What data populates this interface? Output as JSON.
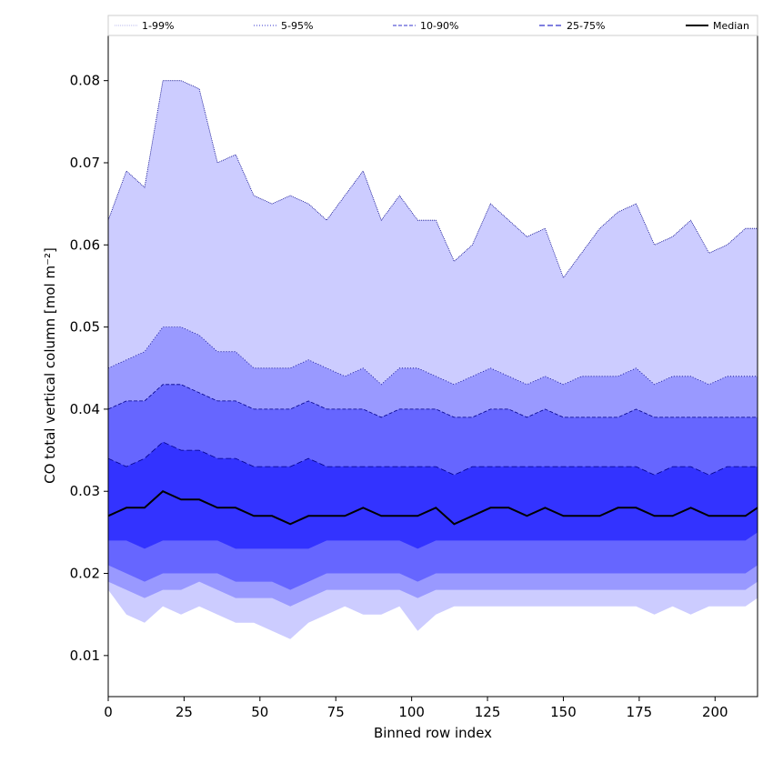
{
  "chart_data": {
    "type": "area",
    "xlabel": "Binned row index",
    "ylabel": "CO total vertical column [mol m⁻²]",
    "xlim": [
      0,
      214
    ],
    "ylim": [
      0.005,
      0.0855
    ],
    "xticks": [
      0,
      25,
      50,
      75,
      100,
      125,
      150,
      175,
      200
    ],
    "yticks": [
      0.01,
      0.02,
      0.03,
      0.04,
      0.05,
      0.06,
      0.07,
      0.08
    ],
    "grid": false,
    "legend_position": "top",
    "x": [
      0,
      6,
      12,
      18,
      24,
      30,
      36,
      42,
      48,
      54,
      60,
      66,
      72,
      78,
      84,
      90,
      96,
      102,
      108,
      114,
      120,
      126,
      132,
      138,
      144,
      150,
      156,
      162,
      168,
      174,
      180,
      186,
      192,
      198,
      204,
      210,
      214
    ],
    "series": [
      {
        "name": "1-99%",
        "lower": [
          0.018,
          0.015,
          0.014,
          0.016,
          0.015,
          0.016,
          0.015,
          0.014,
          0.014,
          0.013,
          0.012,
          0.014,
          0.015,
          0.016,
          0.015,
          0.015,
          0.016,
          0.013,
          0.015,
          0.016,
          0.016,
          0.016,
          0.016,
          0.016,
          0.016,
          0.016,
          0.016,
          0.016,
          0.016,
          0.016,
          0.015,
          0.016,
          0.015,
          0.016,
          0.016,
          0.016,
          0.017
        ],
        "upper": [
          0.063,
          0.069,
          0.067,
          0.08,
          0.08,
          0.079,
          0.07,
          0.071,
          0.066,
          0.065,
          0.066,
          0.065,
          0.063,
          0.066,
          0.069,
          0.063,
          0.066,
          0.063,
          0.063,
          0.058,
          0.06,
          0.065,
          0.063,
          0.061,
          0.062,
          0.056,
          0.059,
          0.062,
          0.064,
          0.065,
          0.06,
          0.061,
          0.063,
          0.059,
          0.06,
          0.062,
          0.062
        ]
      },
      {
        "name": "5-95%",
        "lower": [
          0.019,
          0.018,
          0.017,
          0.018,
          0.018,
          0.019,
          0.018,
          0.017,
          0.017,
          0.017,
          0.016,
          0.017,
          0.018,
          0.018,
          0.018,
          0.018,
          0.018,
          0.017,
          0.018,
          0.018,
          0.018,
          0.018,
          0.018,
          0.018,
          0.018,
          0.018,
          0.018,
          0.018,
          0.018,
          0.018,
          0.018,
          0.018,
          0.018,
          0.018,
          0.018,
          0.018,
          0.019
        ],
        "upper": [
          0.045,
          0.046,
          0.047,
          0.05,
          0.05,
          0.049,
          0.047,
          0.047,
          0.045,
          0.045,
          0.045,
          0.046,
          0.045,
          0.044,
          0.045,
          0.043,
          0.045,
          0.045,
          0.044,
          0.043,
          0.044,
          0.045,
          0.044,
          0.043,
          0.044,
          0.043,
          0.044,
          0.044,
          0.044,
          0.045,
          0.043,
          0.044,
          0.044,
          0.043,
          0.044,
          0.044,
          0.044
        ]
      },
      {
        "name": "10-90%",
        "lower": [
          0.021,
          0.02,
          0.019,
          0.02,
          0.02,
          0.02,
          0.02,
          0.019,
          0.019,
          0.019,
          0.018,
          0.019,
          0.02,
          0.02,
          0.02,
          0.02,
          0.02,
          0.019,
          0.02,
          0.02,
          0.02,
          0.02,
          0.02,
          0.02,
          0.02,
          0.02,
          0.02,
          0.02,
          0.02,
          0.02,
          0.02,
          0.02,
          0.02,
          0.02,
          0.02,
          0.02,
          0.021
        ],
        "upper": [
          0.04,
          0.041,
          0.041,
          0.043,
          0.043,
          0.042,
          0.041,
          0.041,
          0.04,
          0.04,
          0.04,
          0.041,
          0.04,
          0.04,
          0.04,
          0.039,
          0.04,
          0.04,
          0.04,
          0.039,
          0.039,
          0.04,
          0.04,
          0.039,
          0.04,
          0.039,
          0.039,
          0.039,
          0.039,
          0.04,
          0.039,
          0.039,
          0.039,
          0.039,
          0.039,
          0.039,
          0.039
        ]
      },
      {
        "name": "25-75%",
        "lower": [
          0.024,
          0.024,
          0.023,
          0.024,
          0.024,
          0.024,
          0.024,
          0.023,
          0.023,
          0.023,
          0.023,
          0.023,
          0.024,
          0.024,
          0.024,
          0.024,
          0.024,
          0.023,
          0.024,
          0.024,
          0.024,
          0.024,
          0.024,
          0.024,
          0.024,
          0.024,
          0.024,
          0.024,
          0.024,
          0.024,
          0.024,
          0.024,
          0.024,
          0.024,
          0.024,
          0.024,
          0.025
        ],
        "upper": [
          0.034,
          0.033,
          0.034,
          0.036,
          0.035,
          0.035,
          0.034,
          0.034,
          0.033,
          0.033,
          0.033,
          0.034,
          0.033,
          0.033,
          0.033,
          0.033,
          0.033,
          0.033,
          0.033,
          0.032,
          0.033,
          0.033,
          0.033,
          0.033,
          0.033,
          0.033,
          0.033,
          0.033,
          0.033,
          0.033,
          0.032,
          0.033,
          0.033,
          0.032,
          0.033,
          0.033,
          0.033
        ]
      },
      {
        "name": "Median",
        "values": [
          0.027,
          0.028,
          0.028,
          0.03,
          0.029,
          0.029,
          0.028,
          0.028,
          0.027,
          0.027,
          0.026,
          0.027,
          0.027,
          0.027,
          0.028,
          0.027,
          0.027,
          0.027,
          0.028,
          0.026,
          0.027,
          0.028,
          0.028,
          0.027,
          0.028,
          0.027,
          0.027,
          0.027,
          0.028,
          0.028,
          0.027,
          0.027,
          0.028,
          0.027,
          0.027,
          0.027,
          0.028
        ]
      }
    ],
    "colors": {
      "band_1_99": "#ccccff",
      "band_5_95": "#9999ff",
      "band_10_90": "#6666ff",
      "band_25_75": "#3333ff",
      "median": "#000000",
      "edge": "#00008b"
    }
  }
}
